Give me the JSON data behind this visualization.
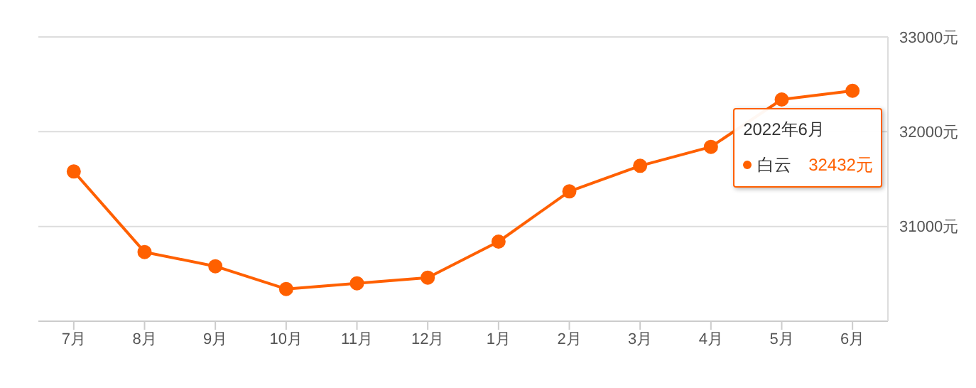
{
  "chart_data": {
    "type": "line",
    "categories": [
      "7月",
      "8月",
      "9月",
      "10月",
      "11月",
      "12月",
      "1月",
      "2月",
      "3月",
      "4月",
      "5月",
      "6月"
    ],
    "series": [
      {
        "name": "白云",
        "color": "#ff6000",
        "values": [
          31580,
          30730,
          30580,
          30340,
          30400,
          30460,
          30840,
          31370,
          31640,
          31840,
          32340,
          32432
        ]
      }
    ],
    "ylim": [
      30000,
      33000
    ],
    "yticks": [
      {
        "value": 31000,
        "label": "31000元"
      },
      {
        "value": 32000,
        "label": "32000元"
      },
      {
        "value": 33000,
        "label": "33000元"
      }
    ],
    "annotations": [
      "2022年6月",
      "32432元"
    ],
    "grid": "y",
    "legend": "right",
    "marker": "circle",
    "line_style": "solid"
  }
}
